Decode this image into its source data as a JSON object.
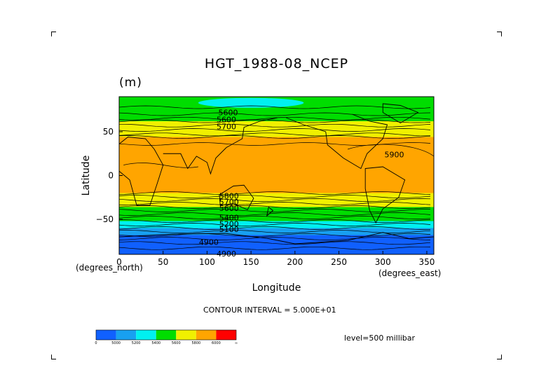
{
  "chart_data": {
    "type": "heatmap",
    "title": "HGT_1988-08_NCEP",
    "units_label": "(m)",
    "xlabel": "Longitude",
    "ylabel": "Latitude",
    "x_units": "(degrees_east)",
    "y_units": "(degrees_north)",
    "xlim": [
      0,
      358
    ],
    "ylim": [
      -90,
      90
    ],
    "x_ticks": [
      0,
      50,
      100,
      150,
      200,
      250,
      300,
      350
    ],
    "y_ticks": [
      50,
      0,
      -50
    ],
    "y_tick_labels": [
      "50",
      "0",
      "−50"
    ],
    "contour_interval_text": "CONTOUR INTERVAL = 5.000E+01",
    "level_text": "level=500 millibar",
    "colorbar": {
      "bins": [
        {
          "color": "#1060ff"
        },
        {
          "color": "#18a0f0"
        },
        {
          "color": "#00f0f0"
        },
        {
          "color": "#00dd00"
        },
        {
          "color": "#f0f000"
        },
        {
          "color": "#ffa500"
        },
        {
          "color": "#ff0000"
        }
      ],
      "tick_labels": [
        "0",
        "5000",
        "5200",
        "5400",
        "5600",
        "5800",
        "6000",
        "∞"
      ]
    },
    "bands": [
      {
        "lat_from": 90,
        "lat_to": 70,
        "color": "#00dd00"
      },
      {
        "lat_from": 70,
        "lat_to": 62,
        "color": "#00dd00"
      },
      {
        "lat_from": 62,
        "lat_to": 44,
        "color": "#f0f000"
      },
      {
        "lat_from": 44,
        "lat_to": -20,
        "color": "#ffa500"
      },
      {
        "lat_from": -20,
        "lat_to": -36,
        "color": "#f0f000"
      },
      {
        "lat_from": -36,
        "lat_to": -52,
        "color": "#00dd00"
      },
      {
        "lat_from": -52,
        "lat_to": -60,
        "color": "#00f0f0"
      },
      {
        "lat_from": -60,
        "lat_to": -68,
        "color": "#18a0f0"
      },
      {
        "lat_from": -68,
        "lat_to": -90,
        "color": "#1060ff"
      }
    ],
    "contour_labels": [
      {
        "text": "5600",
        "lon": 124,
        "lat": 72
      },
      {
        "text": "5600",
        "lon": 122,
        "lat": 64
      },
      {
        "text": "5700",
        "lon": 122,
        "lat": 56
      },
      {
        "text": "5900",
        "lon": 313,
        "lat": 24
      },
      {
        "text": "5800",
        "lon": 125,
        "lat": -23
      },
      {
        "text": "5700",
        "lon": 125,
        "lat": -30
      },
      {
        "text": "5600",
        "lon": 125,
        "lat": -37
      },
      {
        "text": "5400",
        "lon": 125,
        "lat": -48
      },
      {
        "text": "5200",
        "lon": 125,
        "lat": -55
      },
      {
        "text": "5100",
        "lon": 125,
        "lat": -61
      },
      {
        "text": "4900",
        "lon": 102,
        "lat": -76
      },
      {
        "text": "4900",
        "lon": 122,
        "lat": -89
      }
    ]
  }
}
